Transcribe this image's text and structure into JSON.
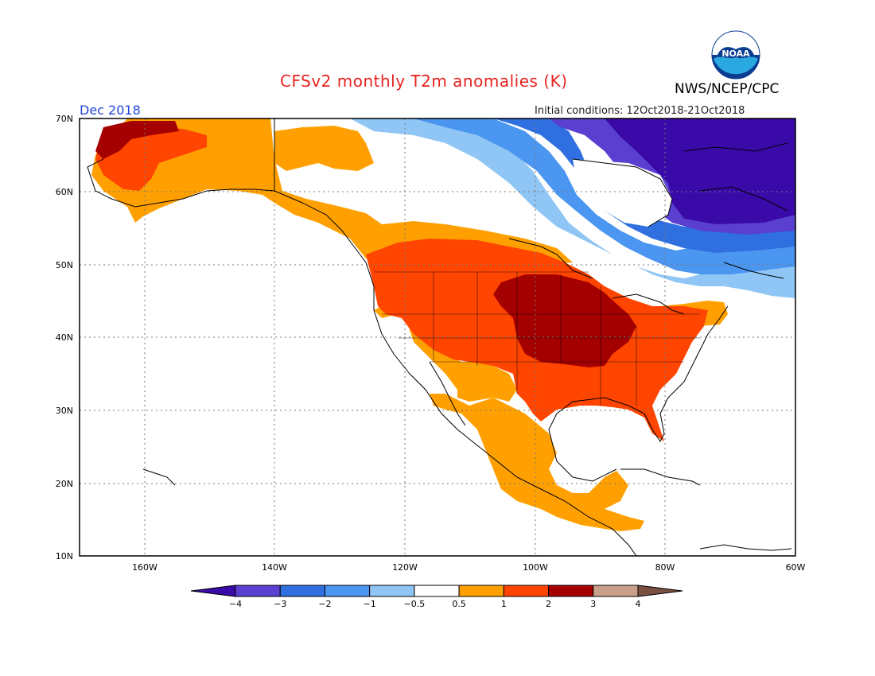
{
  "header": {
    "title": "CFSv2 monthly T2m anomalies (K)",
    "agency": "NWS/NCEP/CPC",
    "month": "Dec 2018",
    "initial_conditions": "Initial conditions: 12Oct2018-21Oct2018",
    "logo_text": "NOAA"
  },
  "map": {
    "lon_labels": [
      "160W",
      "140W",
      "120W",
      "100W",
      "80W",
      "60W"
    ],
    "lat_labels": [
      "70N",
      "60N",
      "50N",
      "40N",
      "30N",
      "20N",
      "10N"
    ]
  },
  "colorbar": {
    "labels": [
      "−4",
      "−3",
      "−2",
      "−1",
      "−0.5",
      "0.5",
      "1",
      "2",
      "3",
      "4"
    ],
    "colors": [
      "#3a0aa8",
      "#5a3fd0",
      "#2f6fe0",
      "#4b96f0",
      "#8fc6f5",
      "#ffffff",
      "#ffa000",
      "#ff4500",
      "#a50000",
      "#c8a08a",
      "#7a5040"
    ]
  }
}
